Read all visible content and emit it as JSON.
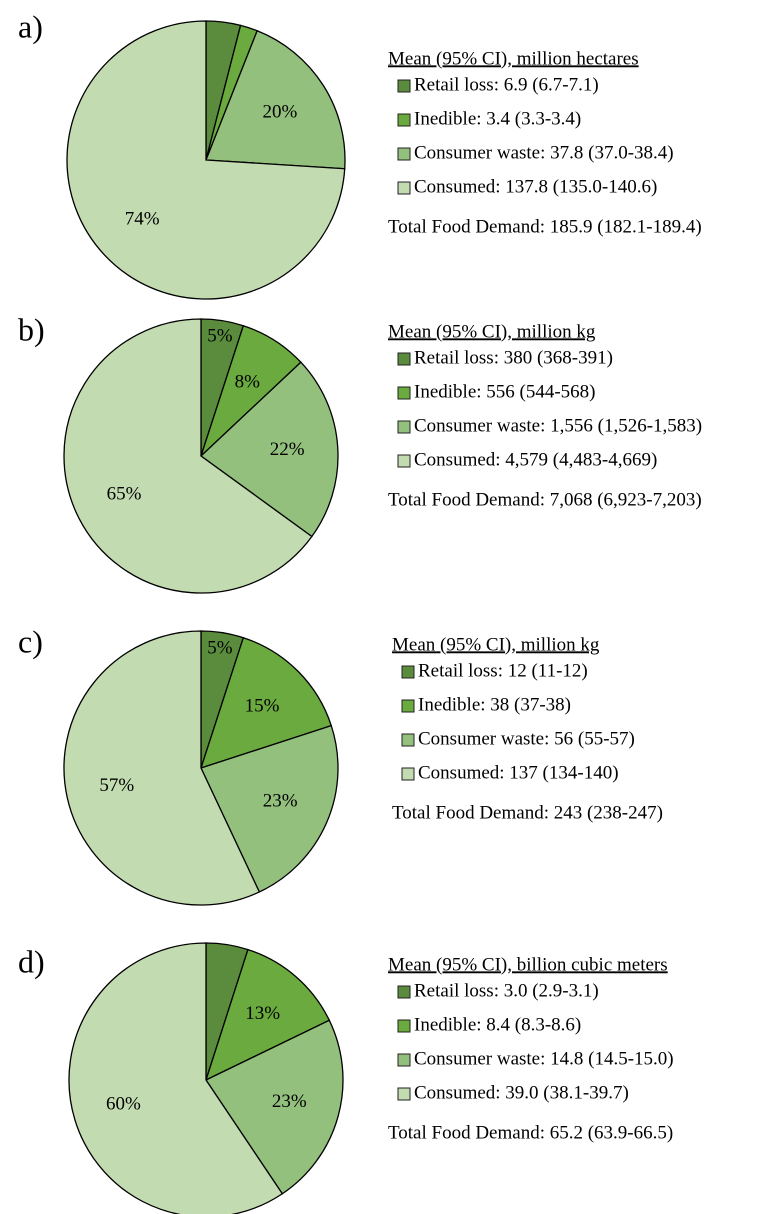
{
  "chart_data": [
    {
      "type": "pie",
      "panel": "a)",
      "legend_title": "Mean (95% CI), million hectares",
      "categories": [
        "Retail loss: 6.9 (6.7-7.1)",
        "Inedible: 3.4 (3.3-3.4)",
        "Consumer waste: 37.8 (37.0-38.4)",
        "Consumed: 137.8 (135.0-140.6)"
      ],
      "values": [
        4,
        2,
        20,
        74
      ],
      "value_labels": [
        null,
        null,
        "20%",
        "74%"
      ],
      "colors": [
        "#5b8c3e",
        "#6aaa3f",
        "#94c07e",
        "#c3dbb1"
      ],
      "total": "Total Food Demand: 185.9 (182.1-189.4)"
    },
    {
      "type": "pie",
      "panel": "b)",
      "legend_title": "Mean (95% CI), million kg",
      "categories": [
        "Retail loss: 380 (368-391)",
        "Inedible: 556 (544-568)",
        "Consumer waste: 1,556 (1,526-1,583)",
        "Consumed: 4,579 (4,483-4,669)"
      ],
      "values": [
        5,
        8,
        22,
        65
      ],
      "value_labels": [
        "5%",
        "8%",
        "22%",
        "65%"
      ],
      "colors": [
        "#5b8c3e",
        "#6aaa3f",
        "#94c07e",
        "#c3dbb1"
      ],
      "total": "Total Food Demand: 7,068 (6,923-7,203)"
    },
    {
      "type": "pie",
      "panel": "c)",
      "legend_title": "Mean (95% CI), million kg",
      "categories": [
        "Retail loss: 12 (11-12)",
        "Inedible: 38 (37-38)",
        "Consumer waste: 56 (55-57)",
        "Consumed: 137 (134-140)"
      ],
      "values": [
        5,
        15,
        23,
        57
      ],
      "value_labels": [
        "5%",
        "15%",
        "23%",
        "57%"
      ],
      "colors": [
        "#5b8c3e",
        "#6aaa3f",
        "#94c07e",
        "#c3dbb1"
      ],
      "total": "Total Food Demand: 243 (238-247)"
    },
    {
      "type": "pie",
      "panel": "d)",
      "legend_title": "Mean (95% CI), billion cubic meters",
      "categories": [
        "Retail loss: 3.0 (2.9-3.1)",
        "Inedible: 8.4 (8.3-8.6)",
        "Consumer waste: 14.8 (14.5-15.0)",
        "Consumed: 39.0 (38.1-39.7)"
      ],
      "values": [
        5,
        13,
        23,
        60
      ],
      "value_labels": [
        null,
        "13%",
        "23%",
        "60%"
      ],
      "colors": [
        "#5b8c3e",
        "#6aaa3f",
        "#94c07e",
        "#c3dbb1"
      ],
      "total": "Total Food Demand: 65.2 (63.9-66.5)"
    }
  ]
}
